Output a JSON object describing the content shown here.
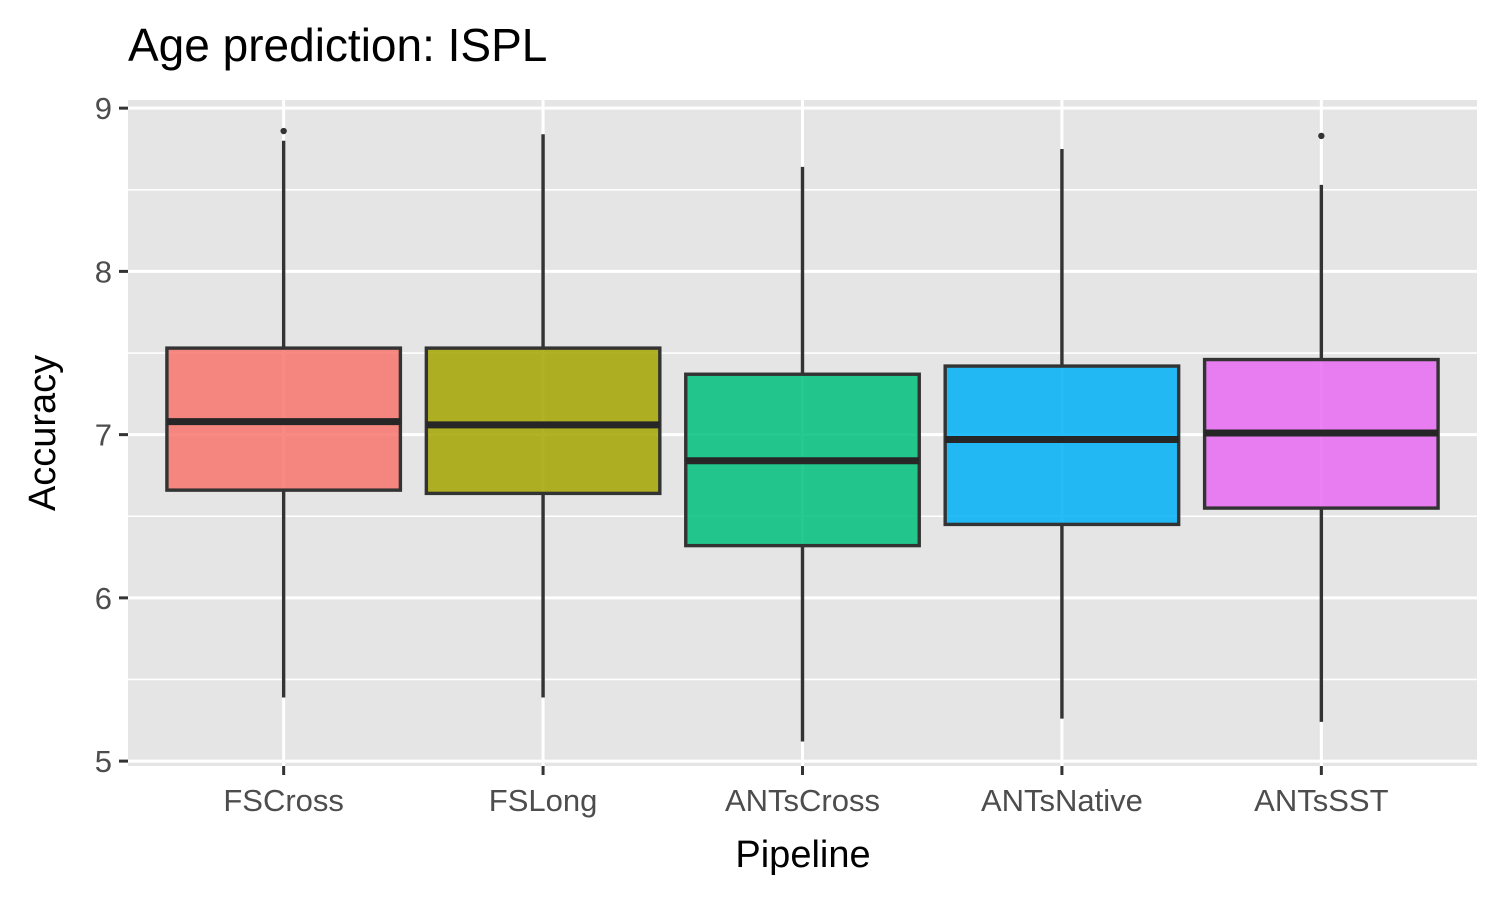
{
  "chart_data": {
    "type": "box",
    "title": "Age prediction: ISPL",
    "xlabel": "Pipeline",
    "ylabel": "Accuracy",
    "ylim": [
      4.97,
      9.05
    ],
    "yticks": [
      "5",
      "6",
      "7",
      "8",
      "9"
    ],
    "categories": [
      "FSCross",
      "FSLong",
      "ANTsCross",
      "ANTsNative",
      "ANTsSST"
    ],
    "boxes": [
      {
        "name": "FSCross",
        "color": "#F8766D",
        "whisker_low": 5.39,
        "q1": 6.66,
        "median": 7.08,
        "q3": 7.53,
        "whisker_high": 8.8,
        "outliers": [
          8.86
        ]
      },
      {
        "name": "FSLong",
        "color": "#A3A500",
        "whisker_low": 5.39,
        "q1": 6.64,
        "median": 7.06,
        "q3": 7.53,
        "whisker_high": 8.84,
        "outliers": []
      },
      {
        "name": "ANTsCross",
        "color": "#00BF7D",
        "whisker_low": 5.12,
        "q1": 6.32,
        "median": 6.84,
        "q3": 7.37,
        "whisker_high": 8.64,
        "outliers": []
      },
      {
        "name": "ANTsNative",
        "color": "#00B0F6",
        "whisker_low": 5.26,
        "q1": 6.45,
        "median": 6.97,
        "q3": 7.42,
        "whisker_high": 8.75,
        "outliers": []
      },
      {
        "name": "ANTsSST",
        "color": "#E76BF3",
        "whisker_low": 5.24,
        "q1": 6.55,
        "median": 7.01,
        "q3": 7.46,
        "whisker_high": 8.53,
        "outliers": [
          8.83
        ]
      }
    ],
    "grid": true,
    "legend": "none"
  }
}
